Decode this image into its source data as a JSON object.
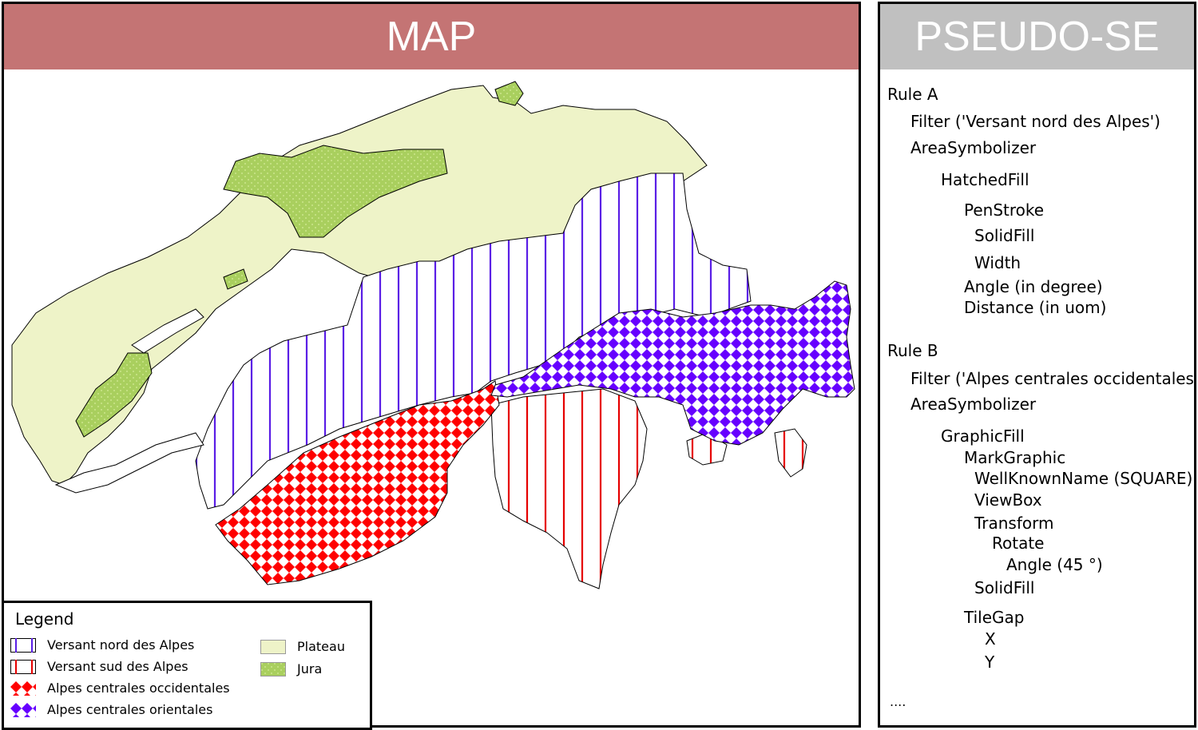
{
  "map_panel": {
    "title": "MAP"
  },
  "se_panel": {
    "title": "PSEUDO-SE"
  },
  "legend": {
    "title": "Legend",
    "items": [
      {
        "label": "Versant nord des Alpes",
        "pattern": "hatch",
        "color": "#5a1ee6"
      },
      {
        "label": "Versant sud des Alpes",
        "pattern": "hatch",
        "color": "#e60000"
      },
      {
        "label": "Alpes centrales occidentales",
        "pattern": "checker",
        "color": "#ff0000"
      },
      {
        "label": "Alpes centrales orientales",
        "pattern": "checker",
        "color": "#6600ff"
      },
      {
        "label": "Plateau",
        "pattern": "solid",
        "color": "#eef3c8"
      },
      {
        "label": "Jura",
        "pattern": "dotted",
        "color": "#a9cf5e"
      }
    ]
  },
  "pseudo_se": {
    "lines": [
      "Rule A",
      "Filter ('Versant nord des Alpes')",
      "AreaSymbolizer",
      "HatchedFill",
      "PenStroke",
      "SolidFill",
      "Width",
      "Angle (in degree)",
      "Distance (in uom)",
      "Rule B",
      "Filter ('Alpes centrales occidentales ')",
      "AreaSymbolizer",
      "GraphicFill",
      "MarkGraphic",
      "WellKnownName (SQUARE)",
      "ViewBox",
      "Transform",
      "Rotate",
      "Angle (45 °)",
      "SolidFill",
      "TileGap",
      "X",
      "Y",
      "...."
    ]
  },
  "colors": {
    "map_header": "#c47474",
    "se_header": "#c0c0c0",
    "plateau": "#eef3c8",
    "jura": "#a9cf5e",
    "nord_hatch": "#5a1ee6",
    "sud_hatch": "#e60000",
    "occidentales": "#ff0000",
    "orientales": "#6600ff"
  }
}
